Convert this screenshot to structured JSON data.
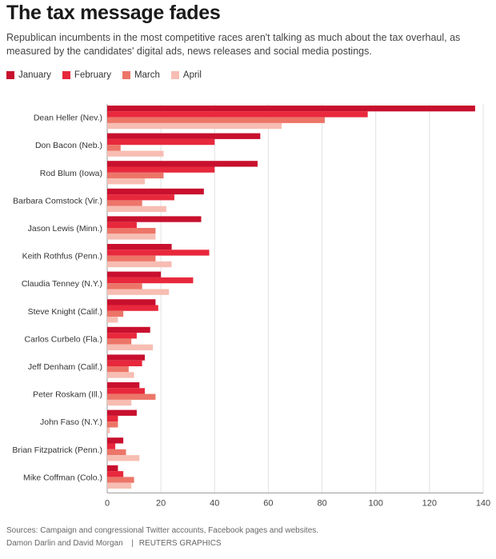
{
  "chart_data": {
    "type": "bar",
    "orientation": "horizontal",
    "title": "The tax message fades",
    "subtitle": "Republican incumbents in the most competitive races aren't talking as much about the tax overhaul, as measured by the candidates' digital ads, news releases and social media postings.",
    "categories": [
      "Dean Heller (Nev.)",
      "Don Bacon (Neb.)",
      "Rod Blum (Iowa)",
      "Barbara Comstock (Vir.)",
      "Jason Lewis (Minn.)",
      "Keith Rothfus (Penn.)",
      "Claudia Tenney (N.Y.)",
      "Steve Knight (Calif.)",
      "Carlos Curbelo (Fla.)",
      "Jeff Denham (Calif.)",
      "Peter Roskam (Ill.)",
      "John Faso (N.Y.)",
      "Brian Fitzpatrick (Penn.)",
      "Mike Coffman (Colo.)"
    ],
    "series": [
      {
        "name": "January",
        "color": "#c8102e",
        "values": [
          137,
          57,
          56,
          36,
          35,
          24,
          20,
          18,
          16,
          14,
          12,
          11,
          6,
          4
        ]
      },
      {
        "name": "February",
        "color": "#e8283c",
        "values": [
          97,
          40,
          40,
          25,
          11,
          38,
          32,
          19,
          11,
          13,
          14,
          4,
          3,
          6
        ]
      },
      {
        "name": "March",
        "color": "#ec7568",
        "values": [
          81,
          5,
          21,
          13,
          18,
          18,
          13,
          6,
          9,
          8,
          18,
          4,
          7,
          10
        ]
      },
      {
        "name": "April",
        "color": "#f7bdb3",
        "values": [
          65,
          21,
          14,
          22,
          18,
          24,
          23,
          4,
          17,
          10,
          9,
          1,
          12,
          9
        ]
      }
    ],
    "xlim": [
      0,
      140
    ],
    "xticks": [
      0,
      20,
      40,
      60,
      80,
      100,
      120,
      140
    ],
    "legend_position": "top-left",
    "grid": true
  },
  "footer": {
    "sources": "Sources: Campaign and congressional Twitter accounts, Facebook pages and websites.",
    "credits": "Damon Darlin and David Morgan",
    "brand": "REUTERS GRAPHICS"
  }
}
